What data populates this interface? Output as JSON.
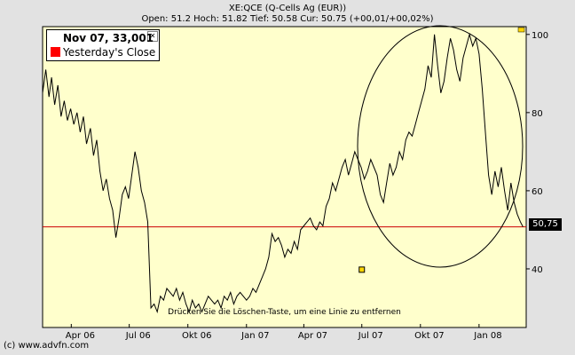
{
  "header": {
    "title": "XE:QCE (Q-Cells Ag (EUR))",
    "quote": "Open: 51.2 Hoch: 51.82 Tief: 50.58 Cur: 50.75 (+00,01/+00,02%)"
  },
  "legend": {
    "date_value": "Nov 07, 33,001",
    "series_label": "Yesterday's Close",
    "series_color": "#ff0000",
    "close_icon": "close-icon"
  },
  "current_price_label": "50,75",
  "hint_text": "Drücken Sie die Löschen-Taste, um eine Linie zu entfernen",
  "copyright": "(c) www.advfn.com",
  "colors": {
    "plot_background": "#ffffcc",
    "price_line": "#000000",
    "reference_line": "#cc0000",
    "marker": "#ffd700"
  },
  "chart_data": {
    "type": "line",
    "title": "XE:QCE (Q-Cells Ag (EUR))",
    "xlabel": "",
    "ylabel": "",
    "x_ticks": [
      "Apr 06",
      "Jul 06",
      "Okt 06",
      "Jan 07",
      "Apr 07",
      "Jul 07",
      "Okt 07",
      "Jan 08"
    ],
    "y_ticks": [
      40,
      60,
      80,
      100
    ],
    "ylim": [
      25,
      102
    ],
    "xlim": [
      "2006-02-15",
      "2008-03-15"
    ],
    "grid": false,
    "reference_line": {
      "label": "Yesterday's Close",
      "value": 50.75
    },
    "current_value": 50.75,
    "annotation_marker": {
      "date": "2007-07-01",
      "value": 39.8
    },
    "series": [
      {
        "values": [
          [
            "2006-02-15",
            85
          ],
          [
            "2006-02-20",
            91
          ],
          [
            "2006-02-25",
            84
          ],
          [
            "2006-03-01",
            89
          ],
          [
            "2006-03-06",
            82
          ],
          [
            "2006-03-11",
            87
          ],
          [
            "2006-03-16",
            79
          ],
          [
            "2006-03-21",
            83
          ],
          [
            "2006-03-26",
            78
          ],
          [
            "2006-03-31",
            81
          ],
          [
            "2006-04-05",
            77
          ],
          [
            "2006-04-10",
            80
          ],
          [
            "2006-04-15",
            75
          ],
          [
            "2006-04-20",
            79
          ],
          [
            "2006-04-25",
            72
          ],
          [
            "2006-05-01",
            76
          ],
          [
            "2006-05-06",
            69
          ],
          [
            "2006-05-11",
            73
          ],
          [
            "2006-05-16",
            65
          ],
          [
            "2006-05-21",
            60
          ],
          [
            "2006-05-26",
            63
          ],
          [
            "2006-05-31",
            58
          ],
          [
            "2006-06-05",
            55
          ],
          [
            "2006-06-10",
            48
          ],
          [
            "2006-06-15",
            53
          ],
          [
            "2006-06-20",
            59
          ],
          [
            "2006-06-25",
            61
          ],
          [
            "2006-06-30",
            58
          ],
          [
            "2006-07-05",
            64
          ],
          [
            "2006-07-10",
            70
          ],
          [
            "2006-07-15",
            66
          ],
          [
            "2006-07-20",
            60
          ],
          [
            "2006-07-25",
            57
          ],
          [
            "2006-07-30",
            52
          ],
          [
            "2006-08-04",
            30
          ],
          [
            "2006-08-09",
            31
          ],
          [
            "2006-08-14",
            29
          ],
          [
            "2006-08-19",
            33
          ],
          [
            "2006-08-24",
            32
          ],
          [
            "2006-08-29",
            35
          ],
          [
            "2006-09-03",
            34
          ],
          [
            "2006-09-08",
            33
          ],
          [
            "2006-09-13",
            35
          ],
          [
            "2006-09-18",
            32
          ],
          [
            "2006-09-23",
            34
          ],
          [
            "2006-09-28",
            31
          ],
          [
            "2006-10-03",
            29
          ],
          [
            "2006-10-08",
            32
          ],
          [
            "2006-10-13",
            30
          ],
          [
            "2006-10-18",
            31
          ],
          [
            "2006-10-23",
            29
          ],
          [
            "2006-10-28",
            31
          ],
          [
            "2006-11-02",
            33
          ],
          [
            "2006-11-07",
            32
          ],
          [
            "2006-11-12",
            31
          ],
          [
            "2006-11-17",
            32
          ],
          [
            "2006-11-22",
            30
          ],
          [
            "2006-11-27",
            33
          ],
          [
            "2006-12-02",
            32
          ],
          [
            "2006-12-07",
            34
          ],
          [
            "2006-12-12",
            31
          ],
          [
            "2006-12-17",
            33
          ],
          [
            "2006-12-22",
            34
          ],
          [
            "2006-12-27",
            33
          ],
          [
            "2007-01-01",
            32
          ],
          [
            "2007-01-06",
            33
          ],
          [
            "2007-01-11",
            35
          ],
          [
            "2007-01-16",
            34
          ],
          [
            "2007-01-21",
            36
          ],
          [
            "2007-01-26",
            38
          ],
          [
            "2007-01-31",
            40
          ],
          [
            "2007-02-05",
            43
          ],
          [
            "2007-02-10",
            49
          ],
          [
            "2007-02-15",
            47
          ],
          [
            "2007-02-20",
            48
          ],
          [
            "2007-02-25",
            46
          ],
          [
            "2007-03-02",
            43
          ],
          [
            "2007-03-07",
            45
          ],
          [
            "2007-03-12",
            44
          ],
          [
            "2007-03-17",
            47
          ],
          [
            "2007-03-22",
            45
          ],
          [
            "2007-03-27",
            50
          ],
          [
            "2007-04-01",
            51
          ],
          [
            "2007-04-06",
            52
          ],
          [
            "2007-04-11",
            53
          ],
          [
            "2007-04-16",
            51
          ],
          [
            "2007-04-21",
            50
          ],
          [
            "2007-04-26",
            52
          ],
          [
            "2007-05-01",
            51
          ],
          [
            "2007-05-06",
            56
          ],
          [
            "2007-05-11",
            58
          ],
          [
            "2007-05-16",
            62
          ],
          [
            "2007-05-21",
            60
          ],
          [
            "2007-05-26",
            63
          ],
          [
            "2007-05-31",
            66
          ],
          [
            "2007-06-05",
            68
          ],
          [
            "2007-06-10",
            64
          ],
          [
            "2007-06-15",
            67
          ],
          [
            "2007-06-20",
            70
          ],
          [
            "2007-06-25",
            68
          ],
          [
            "2007-06-30",
            66
          ],
          [
            "2007-07-05",
            63
          ],
          [
            "2007-07-10",
            65
          ],
          [
            "2007-07-15",
            68
          ],
          [
            "2007-07-20",
            66
          ],
          [
            "2007-07-25",
            64
          ],
          [
            "2007-07-30",
            59
          ],
          [
            "2007-08-04",
            57
          ],
          [
            "2007-08-09",
            62
          ],
          [
            "2007-08-14",
            67
          ],
          [
            "2007-08-19",
            64
          ],
          [
            "2007-08-24",
            66
          ],
          [
            "2007-08-29",
            70
          ],
          [
            "2007-09-03",
            68
          ],
          [
            "2007-09-08",
            73
          ],
          [
            "2007-09-13",
            75
          ],
          [
            "2007-09-18",
            74
          ],
          [
            "2007-09-23",
            77
          ],
          [
            "2007-09-28",
            80
          ],
          [
            "2007-10-03",
            83
          ],
          [
            "2007-10-08",
            86
          ],
          [
            "2007-10-13",
            92
          ],
          [
            "2007-10-18",
            89
          ],
          [
            "2007-10-23",
            100
          ],
          [
            "2007-10-28",
            92
          ],
          [
            "2007-11-02",
            85
          ],
          [
            "2007-11-07",
            88
          ],
          [
            "2007-11-12",
            94
          ],
          [
            "2007-11-17",
            99
          ],
          [
            "2007-11-22",
            96
          ],
          [
            "2007-11-27",
            91
          ],
          [
            "2007-12-02",
            88
          ],
          [
            "2007-12-07",
            94
          ],
          [
            "2007-12-12",
            97
          ],
          [
            "2007-12-17",
            100
          ],
          [
            "2007-12-22",
            97
          ],
          [
            "2007-12-27",
            99
          ],
          [
            "2008-01-01",
            95
          ],
          [
            "2008-01-06",
            86
          ],
          [
            "2008-01-11",
            75
          ],
          [
            "2008-01-16",
            64
          ],
          [
            "2008-01-21",
            59
          ],
          [
            "2008-01-26",
            65
          ],
          [
            "2008-01-31",
            61
          ],
          [
            "2008-02-05",
            66
          ],
          [
            "2008-02-10",
            60
          ],
          [
            "2008-02-15",
            55
          ],
          [
            "2008-02-20",
            62
          ],
          [
            "2008-02-25",
            57
          ],
          [
            "2008-03-01",
            54
          ],
          [
            "2008-03-06",
            52
          ],
          [
            "2008-03-10",
            50.75
          ]
        ]
      }
    ]
  }
}
